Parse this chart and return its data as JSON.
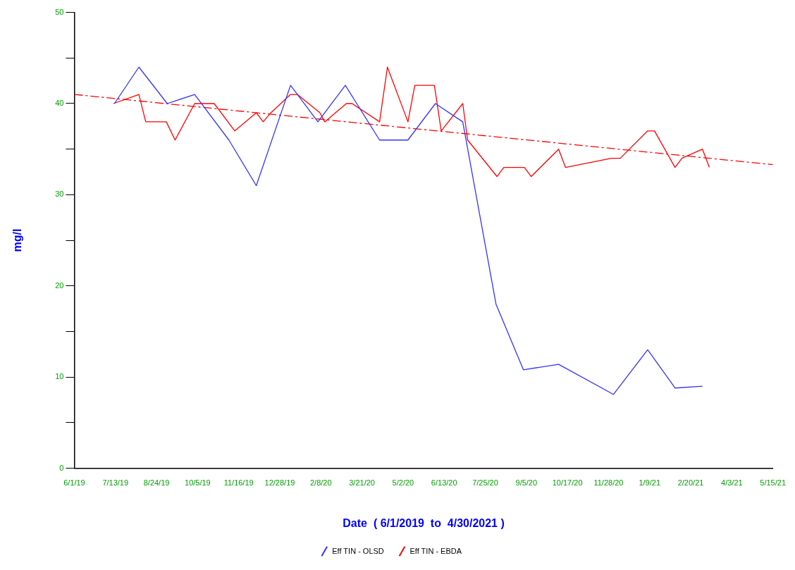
{
  "chart_data": {
    "type": "line",
    "xlabel": "Date  ( 6/1/2019  to  4/30/2021 )",
    "ylabel": "mg/l",
    "xlim": [
      "2019-06-01",
      "2021-05-15"
    ],
    "xticks": [
      {
        "value": "2019-06-01",
        "label": "6/1/19"
      },
      {
        "value": "2019-07-13",
        "label": "7/13/19"
      },
      {
        "value": "2019-08-24",
        "label": "8/24/19"
      },
      {
        "value": "2019-10-05",
        "label": "10/5/19"
      },
      {
        "value": "2019-11-16",
        "label": "11/16/19"
      },
      {
        "value": "2019-12-28",
        "label": "12/28/19"
      },
      {
        "value": "2020-02-08",
        "label": "2/8/20"
      },
      {
        "value": "2020-03-21",
        "label": "3/21/20"
      },
      {
        "value": "2020-05-02",
        "label": "5/2/20"
      },
      {
        "value": "2020-06-13",
        "label": "6/13/20"
      },
      {
        "value": "2020-07-25",
        "label": "7/25/20"
      },
      {
        "value": "2020-09-05",
        "label": "9/5/20"
      },
      {
        "value": "2020-10-17",
        "label": "10/17/20"
      },
      {
        "value": "2020-11-28",
        "label": "11/28/20"
      },
      {
        "value": "2021-01-09",
        "label": "1/9/21"
      },
      {
        "value": "2021-02-20",
        "label": "2/20/21"
      },
      {
        "value": "2021-04-03",
        "label": "4/3/21"
      },
      {
        "value": "2021-05-15",
        "label": "5/15/21"
      }
    ],
    "ylim": [
      0,
      50
    ],
    "yticks": [
      0,
      {
        "value": 5,
        "label": null
      },
      10,
      {
        "value": 15,
        "label": null
      },
      20,
      {
        "value": 25,
        "label": null
      },
      30,
      {
        "value": 35,
        "label": null
      },
      40,
      {
        "value": 45,
        "label": null
      },
      50
    ],
    "grid": false,
    "legend": "bottom",
    "marker": "none",
    "line_style": "solid",
    "series": [
      {
        "name": "Eff TIN - OLSD",
        "color": "#3333ff",
        "x": [
          "2019-07-12",
          "2019-08-06",
          "2019-09-04",
          "2019-10-02",
          "2019-11-06",
          "2019-12-04",
          "2020-01-08",
          "2020-02-05",
          "2020-03-04",
          "2020-04-08",
          "2020-05-07",
          "2020-06-04",
          "2020-07-02",
          "2020-08-05",
          "2020-09-02",
          "2020-10-08",
          "2020-12-03",
          "2021-01-07",
          "2021-02-04",
          "2021-03-04"
        ],
        "values": [
          40,
          44,
          40,
          41,
          36,
          31,
          42,
          38,
          42,
          36,
          36,
          40,
          38,
          18,
          10.8,
          11.4,
          8.1,
          13,
          8.8,
          9
        ]
      },
      {
        "name": "Eff TIN - EBDA",
        "color": "#ff0000",
        "x": [
          "2019-07-11",
          "2019-08-06",
          "2019-08-13",
          "2019-09-03",
          "2019-09-12",
          "2019-10-02",
          "2019-10-22",
          "2019-11-12",
          "2019-12-04",
          "2019-12-11",
          "2019-12-19",
          "2020-01-08",
          "2020-01-15",
          "2020-02-07",
          "2020-02-12",
          "2020-03-05",
          "2020-03-11",
          "2020-04-08",
          "2020-04-16",
          "2020-05-07",
          "2020-05-14",
          "2020-06-03",
          "2020-06-10",
          "2020-07-02",
          "2020-07-07",
          "2020-08-06",
          "2020-08-13",
          "2020-09-03",
          "2020-09-10",
          "2020-10-08",
          "2020-10-15",
          "2020-12-01",
          "2020-12-10",
          "2021-01-07",
          "2021-01-14",
          "2021-02-04",
          "2021-02-11",
          "2021-03-04",
          "2021-03-11"
        ],
        "values": [
          40,
          41,
          38,
          38,
          36,
          40,
          40,
          37,
          39,
          38,
          39,
          41,
          41,
          39,
          38,
          40,
          40,
          38,
          44,
          38,
          42,
          42,
          37,
          40,
          36,
          32,
          33,
          33,
          32,
          35,
          33,
          34,
          34,
          37,
          37,
          33,
          34,
          35,
          33
        ]
      },
      {
        "type": "line",
        "color": "#ff0000",
        "line_style": "dashed",
        "x": [
          "2019-06-01",
          "2021-05-15"
        ],
        "values": [
          41,
          33.3
        ]
      }
    ]
  }
}
